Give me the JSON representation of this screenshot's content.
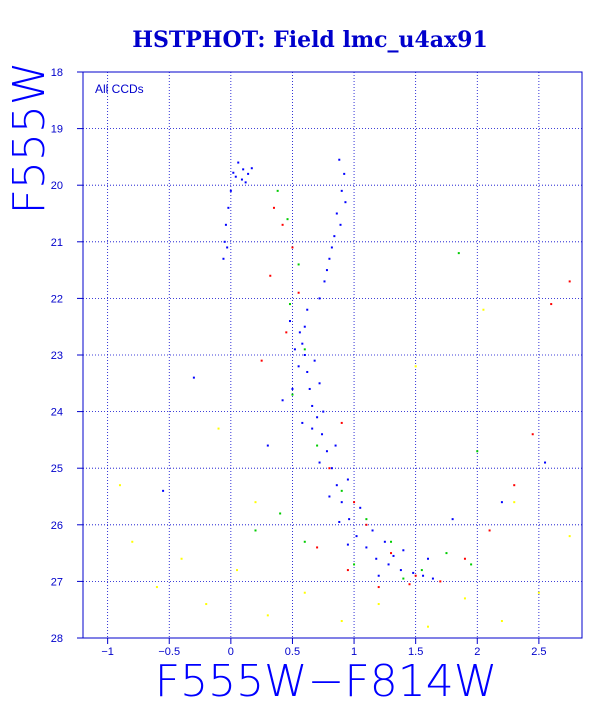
{
  "chart_data": {
    "type": "scatter",
    "title": "HSTPHOT: Field lmc_u4ax91",
    "xlabel": "F555W−F814W",
    "ylabel": "F555W",
    "annotation": "All CCDs",
    "xlim": [
      -1.2,
      2.85
    ],
    "ylim": [
      28,
      18
    ],
    "y_inverted": true,
    "grid": true,
    "x_ticks": [
      -1,
      -0.5,
      0,
      0.5,
      1,
      1.5,
      2,
      2.5
    ],
    "x_tick_labels": [
      "−1",
      "−0.5",
      "0",
      "0.5",
      "1",
      "1.5",
      "2",
      "2.5"
    ],
    "y_ticks": [
      18,
      19,
      20,
      21,
      22,
      23,
      24,
      25,
      26,
      27,
      28
    ],
    "y_tick_labels": [
      "18",
      "19",
      "20",
      "21",
      "22",
      "23",
      "24",
      "25",
      "26",
      "27",
      "28"
    ],
    "colors": {
      "title": "#0000cc",
      "axis": "#0000cc",
      "grid": "#0000cc",
      "background": "#ffffff"
    },
    "series": [
      {
        "color": "#0000ff",
        "points": [
          [
            0.06,
            19.6
          ],
          [
            0.1,
            19.72
          ],
          [
            0.14,
            19.8
          ],
          [
            0.04,
            19.85
          ],
          [
            0.09,
            19.9
          ],
          [
            0.02,
            19.78
          ],
          [
            0.12,
            19.95
          ],
          [
            0.17,
            19.7
          ],
          [
            0.0,
            20.1
          ],
          [
            -0.02,
            20.4
          ],
          [
            -0.04,
            20.7
          ],
          [
            -0.05,
            21.0
          ],
          [
            -0.06,
            21.3
          ],
          [
            -0.03,
            21.1
          ],
          [
            0.88,
            19.55
          ],
          [
            0.92,
            19.8
          ],
          [
            0.9,
            20.1
          ],
          [
            0.86,
            20.5
          ],
          [
            0.84,
            20.9
          ],
          [
            0.8,
            21.3
          ],
          [
            0.76,
            21.7
          ],
          [
            0.72,
            22.0
          ],
          [
            0.93,
            20.3
          ],
          [
            0.89,
            20.7
          ],
          [
            0.82,
            21.1
          ],
          [
            0.78,
            21.5
          ],
          [
            0.62,
            22.2
          ],
          [
            0.6,
            22.5
          ],
          [
            0.58,
            22.8
          ],
          [
            0.6,
            23.0
          ],
          [
            0.62,
            23.3
          ],
          [
            0.64,
            23.6
          ],
          [
            0.66,
            23.9
          ],
          [
            0.7,
            24.1
          ],
          [
            0.74,
            24.4
          ],
          [
            0.78,
            24.7
          ],
          [
            0.82,
            25.0
          ],
          [
            0.86,
            25.3
          ],
          [
            0.9,
            25.6
          ],
          [
            0.96,
            25.9
          ],
          [
            1.02,
            26.2
          ],
          [
            1.1,
            26.4
          ],
          [
            1.18,
            26.6
          ],
          [
            1.28,
            26.7
          ],
          [
            1.38,
            26.8
          ],
          [
            1.48,
            26.85
          ],
          [
            1.56,
            26.9
          ],
          [
            1.64,
            26.95
          ],
          [
            0.56,
            22.6
          ],
          [
            0.68,
            23.1
          ],
          [
            0.72,
            23.5
          ],
          [
            0.55,
            23.2
          ],
          [
            0.75,
            24.0
          ],
          [
            0.66,
            24.3
          ],
          [
            0.85,
            24.6
          ],
          [
            0.72,
            24.9
          ],
          [
            0.95,
            25.2
          ],
          [
            0.8,
            25.5
          ],
          [
            1.05,
            25.7
          ],
          [
            0.88,
            25.95
          ],
          [
            1.15,
            26.1
          ],
          [
            0.95,
            26.35
          ],
          [
            1.25,
            26.3
          ],
          [
            1.32,
            26.55
          ],
          [
            0.52,
            22.9
          ],
          [
            0.5,
            23.6
          ],
          [
            0.58,
            24.2
          ],
          [
            0.48,
            22.4
          ],
          [
            0.42,
            23.8
          ],
          [
            1.4,
            26.45
          ],
          [
            1.6,
            26.6
          ],
          [
            1.2,
            26.9
          ],
          [
            -0.55,
            25.4
          ],
          [
            0.3,
            24.6
          ],
          [
            1.8,
            25.9
          ],
          [
            2.2,
            25.6
          ],
          [
            -0.3,
            23.4
          ],
          [
            2.55,
            24.9
          ]
        ]
      },
      {
        "color": "#ff0000",
        "points": [
          [
            0.35,
            20.4
          ],
          [
            0.42,
            20.7
          ],
          [
            0.5,
            21.1
          ],
          [
            0.32,
            21.6
          ],
          [
            0.55,
            21.9
          ],
          [
            0.45,
            22.6
          ],
          [
            0.25,
            23.1
          ],
          [
            0.9,
            24.2
          ],
          [
            0.8,
            25.0
          ],
          [
            1.0,
            25.6
          ],
          [
            1.1,
            26.0
          ],
          [
            1.3,
            26.5
          ],
          [
            1.5,
            26.9
          ],
          [
            1.7,
            27.0
          ],
          [
            1.9,
            26.6
          ],
          [
            2.1,
            26.1
          ],
          [
            2.3,
            25.3
          ],
          [
            2.45,
            24.4
          ],
          [
            2.6,
            22.1
          ],
          [
            2.75,
            21.7
          ],
          [
            1.2,
            27.1
          ],
          [
            0.95,
            26.8
          ],
          [
            0.7,
            26.4
          ],
          [
            1.45,
            27.05
          ]
        ]
      },
      {
        "color": "#00cc00",
        "points": [
          [
            0.38,
            20.1
          ],
          [
            0.46,
            20.6
          ],
          [
            0.55,
            21.4
          ],
          [
            0.48,
            22.1
          ],
          [
            0.6,
            22.9
          ],
          [
            0.5,
            23.7
          ],
          [
            0.7,
            24.6
          ],
          [
            0.9,
            25.4
          ],
          [
            1.1,
            25.9
          ],
          [
            1.3,
            26.3
          ],
          [
            1.55,
            26.8
          ],
          [
            1.75,
            26.5
          ],
          [
            0.4,
            25.8
          ],
          [
            0.2,
            26.1
          ],
          [
            1.95,
            26.7
          ],
          [
            1.85,
            21.2
          ],
          [
            2.0,
            24.7
          ],
          [
            0.6,
            26.3
          ],
          [
            1.4,
            26.95
          ],
          [
            1.0,
            26.7
          ]
        ]
      },
      {
        "color": "#ffff00",
        "points": [
          [
            -0.8,
            26.3
          ],
          [
            -0.6,
            27.1
          ],
          [
            -0.4,
            26.6
          ],
          [
            -0.2,
            27.4
          ],
          [
            0.05,
            26.8
          ],
          [
            0.3,
            27.6
          ],
          [
            0.6,
            27.2
          ],
          [
            0.9,
            27.7
          ],
          [
            1.2,
            27.4
          ],
          [
            1.6,
            27.8
          ],
          [
            1.9,
            27.3
          ],
          [
            2.2,
            27.7
          ],
          [
            2.5,
            27.2
          ],
          [
            2.75,
            26.2
          ],
          [
            -0.9,
            25.3
          ],
          [
            1.5,
            23.2
          ],
          [
            2.3,
            25.6
          ],
          [
            0.2,
            25.6
          ],
          [
            -0.1,
            24.3
          ],
          [
            2.05,
            22.2
          ]
        ]
      }
    ]
  }
}
